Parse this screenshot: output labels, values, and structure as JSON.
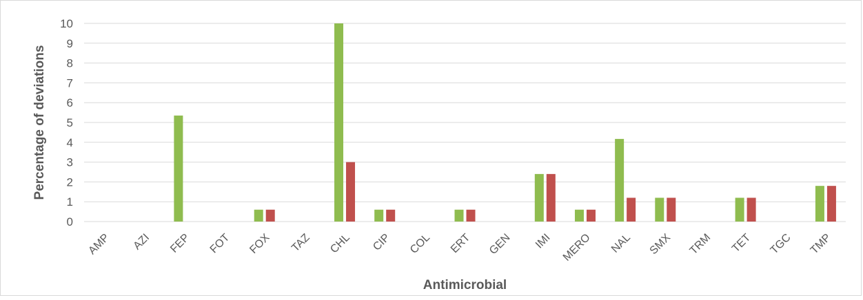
{
  "chart_data": {
    "type": "bar",
    "title": "",
    "xlabel": "Antimicrobial",
    "ylabel": "Percentage of deviations",
    "ylim": [
      0,
      10
    ],
    "yticks": [
      0,
      1,
      2,
      3,
      4,
      5,
      6,
      7,
      8,
      9,
      10
    ],
    "grid": true,
    "legend": "none",
    "categories": [
      "AMP",
      "AZI",
      "FEP",
      "FOT",
      "FOX",
      "TAZ",
      "CHL",
      "CIP",
      "COL",
      "ERT",
      "GEN",
      "IMI",
      "MERO",
      "NAL",
      "SMX",
      "TRM",
      "TET",
      "TGC",
      "TMP"
    ],
    "series": [
      {
        "color": "#8FBC4F",
        "values": [
          0,
          0,
          5.35,
          0,
          0.6,
          0,
          10,
          0.6,
          0,
          0.6,
          0,
          2.4,
          0.6,
          4.17,
          1.2,
          0,
          1.2,
          0,
          1.8
        ]
      },
      {
        "color": "#C0504D",
        "values": [
          0,
          0,
          0,
          0,
          0.6,
          0,
          3,
          0.6,
          0,
          0.6,
          0,
          2.4,
          0.6,
          1.2,
          1.2,
          0,
          1.2,
          0,
          1.8
        ]
      }
    ]
  }
}
